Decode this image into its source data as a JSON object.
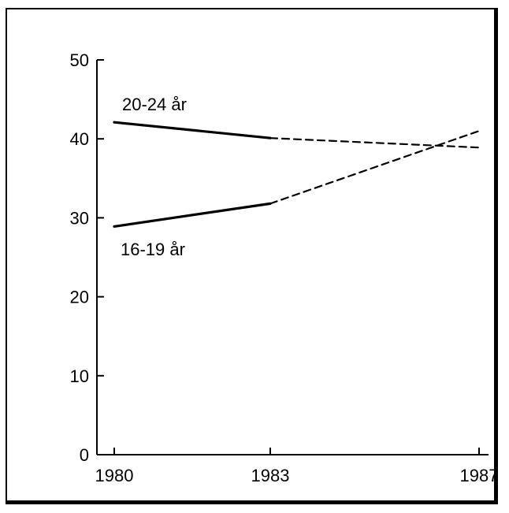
{
  "chart_data": {
    "type": "line",
    "x_ticks": [
      "1980",
      "1983",
      "1987"
    ],
    "y_ticks": [
      "0",
      "10",
      "20",
      "30",
      "40",
      "50"
    ],
    "ylim": [
      0,
      50
    ],
    "series": [
      {
        "name": "20-24 år",
        "points": [
          {
            "x": 1980,
            "y": 42.1,
            "style": "solid"
          },
          {
            "x": 1983,
            "y": 40.1,
            "style": "solid"
          },
          {
            "x": 1987,
            "y": 38.9,
            "style": "dashed"
          }
        ]
      },
      {
        "name": "16-19 år",
        "points": [
          {
            "x": 1980,
            "y": 28.9,
            "style": "solid"
          },
          {
            "x": 1983,
            "y": 31.8,
            "style": "solid"
          },
          {
            "x": 1987,
            "y": 41.0,
            "style": "dashed"
          }
        ]
      }
    ],
    "grid": false,
    "line_color": "#000000"
  }
}
